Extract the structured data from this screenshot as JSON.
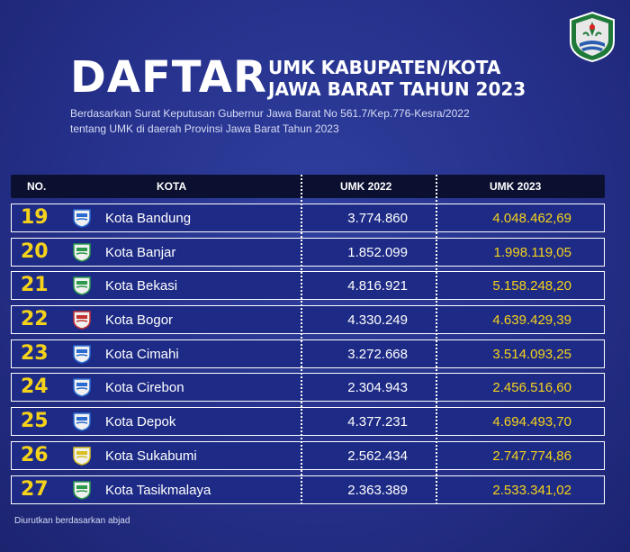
{
  "header": {
    "title_big": "DAFTAR",
    "title_line1": "UMK KABUPATEN/KOTA",
    "title_line2": "JAWA BARAT TAHUN 2023",
    "subtitle_line1": "Berdasarkan Surat Keputusan Gubernur Jawa Barat No 561.7/Kep.776-Kesra/2022",
    "subtitle_line2": "tentang UMK di daerah Provinsi Jawa Barat Tahun 2023"
  },
  "table": {
    "columns": [
      "NO.",
      "KOTA",
      "UMK 2022",
      "UMK 2023"
    ],
    "rows": [
      {
        "no": "19",
        "kota": "Kota Bandung",
        "umk2022": "3.774.860",
        "umk2023": "4.048.462,69"
      },
      {
        "no": "20",
        "kota": "Kota Banjar",
        "umk2022": "1.852.099",
        "umk2023": "1.998.119,05"
      },
      {
        "no": "21",
        "kota": "Kota Bekasi",
        "umk2022": "4.816.921",
        "umk2023": "5.158.248,20"
      },
      {
        "no": "22",
        "kota": "Kota Bogor",
        "umk2022": "4.330.249",
        "umk2023": "4.639.429,39"
      },
      {
        "no": "23",
        "kota": "Kota Cimahi",
        "umk2022": "3.272.668",
        "umk2023": "3.514.093,25"
      },
      {
        "no": "24",
        "kota": "Kota Cirebon",
        "umk2022": "2.304.943",
        "umk2023": "2.456.516,60"
      },
      {
        "no": "25",
        "kota": "Kota Depok",
        "umk2022": "4.377.231",
        "umk2023": "4.694.493,70"
      },
      {
        "no": "26",
        "kota": "Kota Sukabumi",
        "umk2022": "2.562.434",
        "umk2023": "2.747.774,86"
      },
      {
        "no": "27",
        "kota": "Kota Tasikmalaya",
        "umk2022": "2.363.389",
        "umk2023": "2.533.341,02"
      }
    ]
  },
  "footnote": "Diurutkan berdasarkan abjad",
  "colors": {
    "background": "#25308a",
    "row_fill": "#1e2b86",
    "header_fill": "#0c1030",
    "accent_yellow": "#f5d21a"
  },
  "icons": {
    "logo": "jawa-barat-emblem-icon",
    "row_emblem": "city-emblem-icon"
  }
}
